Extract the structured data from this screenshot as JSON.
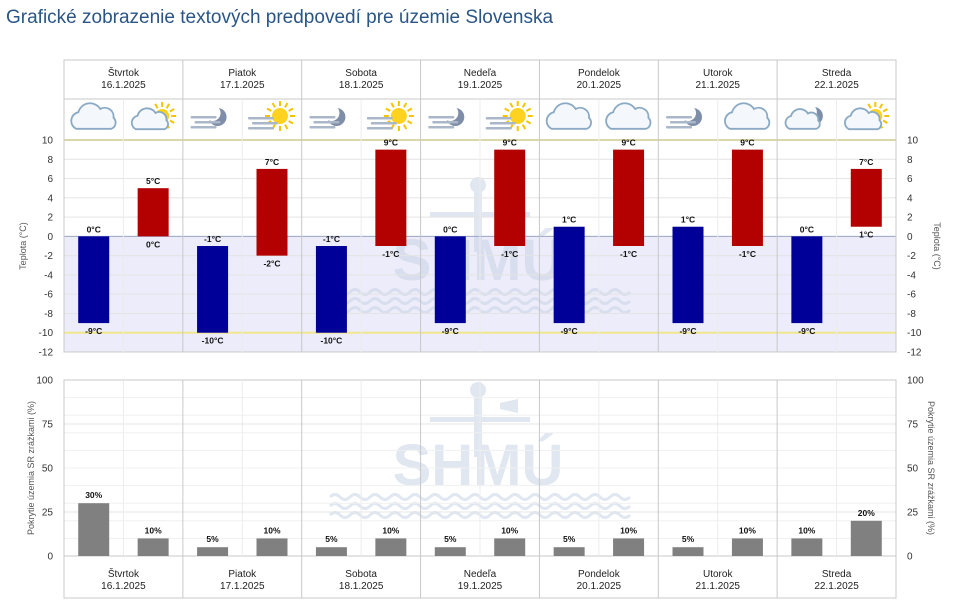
{
  "page": {
    "title": "Grafické zobrazenie textových predpovedí pre územie Slovenska"
  },
  "days": [
    {
      "name": "Štvrtok",
      "date": "16.1.2025",
      "icons": [
        "cloudy-icon",
        "partly-sunny-icon"
      ]
    },
    {
      "name": "Piatok",
      "date": "17.1.2025",
      "icons": [
        "night-fog-icon",
        "sunny-fog-icon"
      ]
    },
    {
      "name": "Sobota",
      "date": "18.1.2025",
      "icons": [
        "night-fog-icon",
        "sunny-fog-icon"
      ]
    },
    {
      "name": "Nedeľa",
      "date": "19.1.2025",
      "icons": [
        "night-fog-icon",
        "sunny-fog-icon"
      ]
    },
    {
      "name": "Pondelok",
      "date": "20.1.2025",
      "icons": [
        "cloudy-icon",
        "cloudy-icon"
      ]
    },
    {
      "name": "Utorok",
      "date": "21.1.2025",
      "icons": [
        "night-fog-icon",
        "cloudy-icon"
      ]
    },
    {
      "name": "Streda",
      "date": "22.1.2025",
      "icons": [
        "night-partly-cloudy-icon",
        "partly-sunny-icon"
      ]
    }
  ],
  "chart_data": [
    {
      "type": "bar",
      "name": "temperature",
      "ylabel": "Teplota (°C)",
      "ylim": [
        -12,
        10
      ],
      "yticks": [
        10,
        8,
        6,
        4,
        2,
        0,
        -2,
        -4,
        -6,
        -8,
        -10,
        -12
      ],
      "reference_lines": [
        10,
        -10
      ],
      "grid": true,
      "categories": [
        "Štvrtok 16.1.2025",
        "Piatok 17.1.2025",
        "Sobota 18.1.2025",
        "Nedeľa 19.1.2025",
        "Pondelok 20.1.2025",
        "Utorok 21.1.2025",
        "Streda 22.1.2025"
      ],
      "series": [
        {
          "color": "#000099",
          "min": [
            -9,
            -10,
            -10,
            -9,
            -9,
            -9,
            -9
          ],
          "max": [
            0,
            -1,
            -1,
            0,
            1,
            1,
            0
          ],
          "min_labels": [
            "-9°C",
            "-10°C",
            "-10°C",
            "-9°C",
            "-9°C",
            "-9°C",
            "-9°C"
          ],
          "max_labels": [
            "0°C",
            "-1°C",
            "-1°C",
            "0°C",
            "1°C",
            "1°C",
            "0°C"
          ]
        },
        {
          "color": "#b30000",
          "min": [
            0,
            -2,
            -1,
            -1,
            -1,
            -1,
            1
          ],
          "max": [
            5,
            7,
            9,
            9,
            9,
            9,
            7
          ],
          "min_labels": [
            "0°C",
            "-2°C",
            "-1°C",
            "-1°C",
            "-1°C",
            "-1°C",
            "1°C"
          ],
          "max_labels": [
            "5°C",
            "7°C",
            "9°C",
            "9°C",
            "9°C",
            "9°C",
            "7°C"
          ]
        }
      ],
      "axis_tick_labels": [
        "10",
        "8",
        "6",
        "4",
        "2",
        "0",
        "-2",
        "-4",
        "-6",
        "-8",
        "-10",
        "-12"
      ]
    },
    {
      "type": "bar",
      "name": "precipitation_coverage",
      "ylabel": "Pokrytie územia SR zrážkami (%)",
      "ylim": [
        0,
        100
      ],
      "yticks": [
        100,
        75,
        50,
        25,
        0
      ],
      "grid": true,
      "categories": [
        "Štvrtok 16.1.2025",
        "Piatok 17.1.2025",
        "Sobota 18.1.2025",
        "Nedeľa 19.1.2025",
        "Pondelok 20.1.2025",
        "Utorok 21.1.2025",
        "Streda 22.1.2025"
      ],
      "series": [
        {
          "color": "#808080",
          "values": [
            30,
            5,
            5,
            5,
            5,
            5,
            10
          ],
          "labels": [
            "30%",
            "5%",
            "5%",
            "5%",
            "5%",
            "5%",
            "10%"
          ]
        },
        {
          "color": "#808080",
          "values": [
            10,
            10,
            10,
            10,
            10,
            10,
            20
          ],
          "labels": [
            "10%",
            "10%",
            "10%",
            "10%",
            "10%",
            "10%",
            "20%"
          ]
        }
      ],
      "axis_tick_labels": [
        "100",
        "75",
        "50",
        "25",
        "0"
      ]
    }
  ],
  "watermark": {
    "text": "SHMÚ"
  },
  "colors": {
    "title": "#2a5587",
    "cold_bar": "#000099",
    "warm_bar": "#b30000",
    "precip_bar": "#808080",
    "negative_zone": "#ececfa",
    "reference_line": "#f0e68c",
    "watermark": "#c8d4e6"
  }
}
